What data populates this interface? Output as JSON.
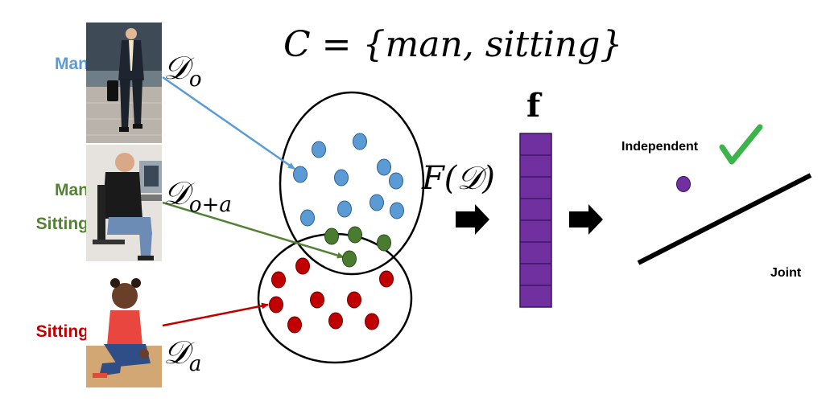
{
  "colors": {
    "man": "#5b9bd5",
    "man_sitting": "#548235",
    "sitting": "#c00000",
    "purple": "#7030a0",
    "check": "#3cb44b",
    "blue_dot": "#5b9bd5",
    "green_dot": "#4a7c30",
    "red_dot": "#c00000"
  },
  "labels": {
    "man": "Man",
    "man_sitting_line1": "Man",
    "man_sitting_line2": "Sitting",
    "sitting": "Sitting"
  },
  "formula": {
    "set_title": "C = {man, sitting}",
    "set_lhs": "C",
    "set_eq": "=",
    "set_rhs": "{man, sitting}",
    "func": "F(𝒟)",
    "func_prefix": "F(",
    "func_arg": "𝒟",
    "func_suffix": ")",
    "vector": "f"
  },
  "datasets": {
    "d_o": {
      "symbol": "𝒟",
      "sub": "o"
    },
    "d_oa": {
      "symbol": "𝒟",
      "sub": "o+a"
    },
    "d_a": {
      "symbol": "𝒟",
      "sub": "a"
    }
  },
  "embedding": {
    "independent_label": "Independent",
    "joint_label": "Joint"
  },
  "photos": {
    "man": "photo of man walking",
    "man_sitting": "photo of man sitting at computer",
    "sitting": "photo of sitting child"
  }
}
